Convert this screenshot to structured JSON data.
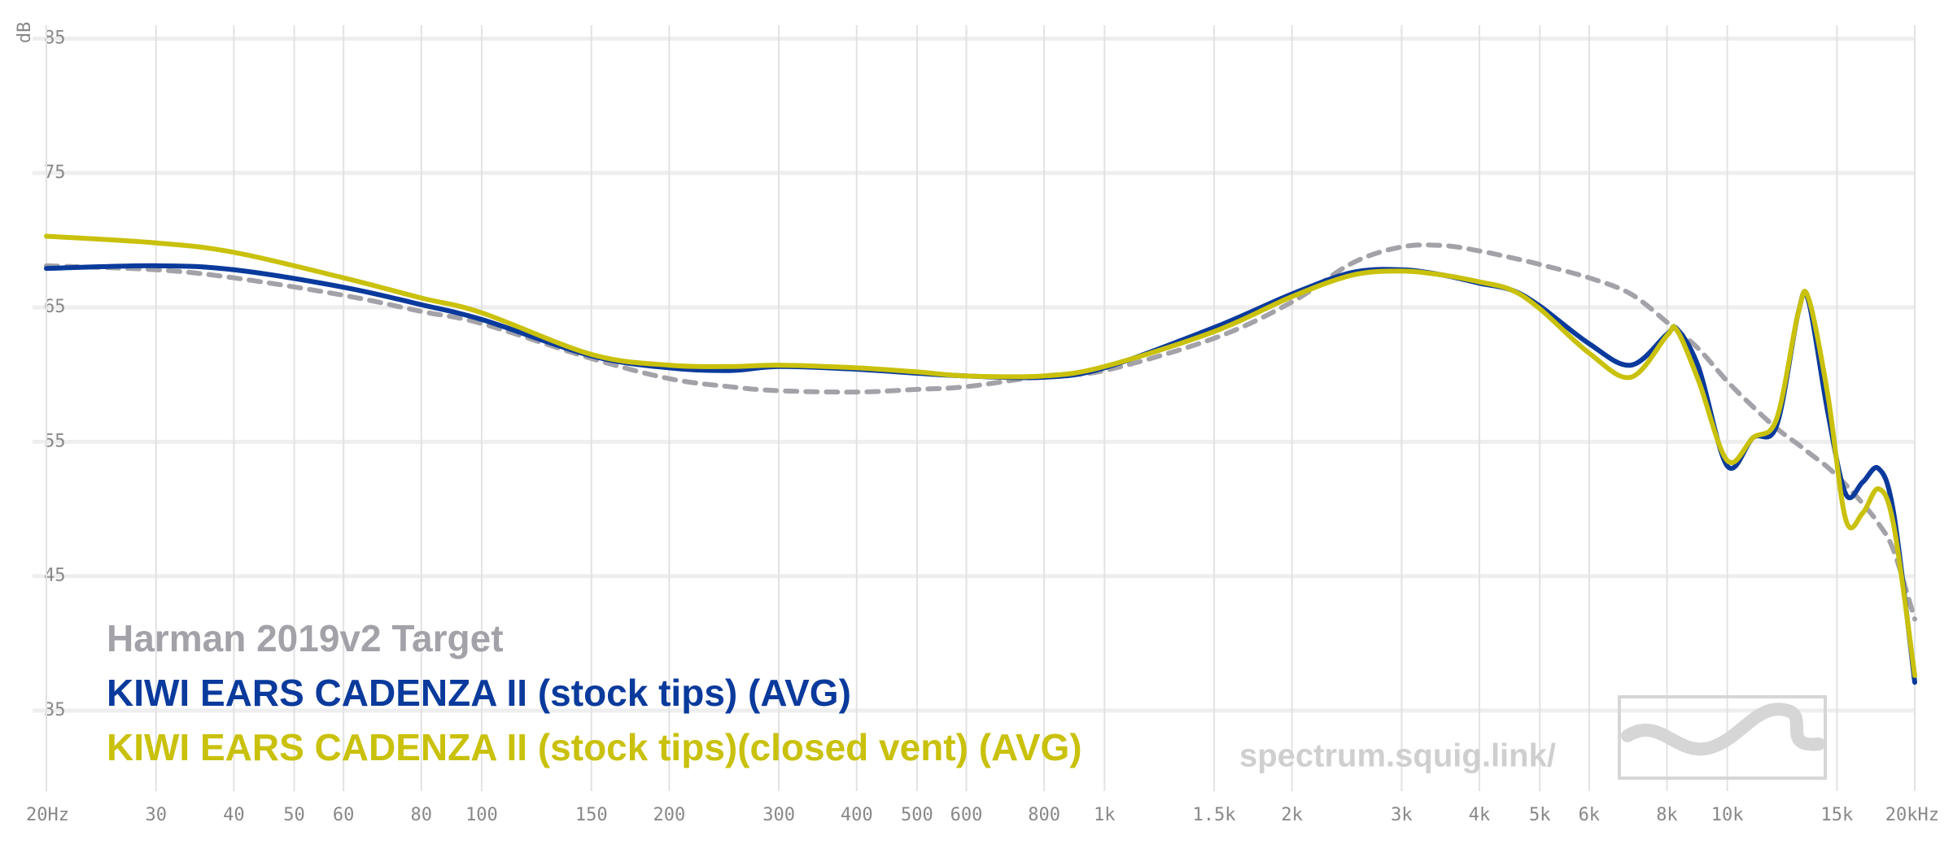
{
  "chart_data": {
    "type": "line",
    "y_label": "dB",
    "x_log": true,
    "grid": true,
    "legend_position": "bottom-left",
    "watermark": "spectrum.squig.link/",
    "xlim": [
      20,
      20000
    ],
    "ylim": [
      29,
      86
    ],
    "xticks": [
      {
        "value": 20,
        "label": "20Hz"
      },
      30,
      40,
      50,
      60,
      80,
      100,
      150,
      200,
      300,
      400,
      500,
      600,
      800,
      {
        "value": 1000,
        "label": "1k"
      },
      {
        "value": 1500,
        "label": "1.5k"
      },
      {
        "value": 2000,
        "label": "2k"
      },
      {
        "value": 3000,
        "label": "3k"
      },
      {
        "value": 4000,
        "label": "4k"
      },
      {
        "value": 5000,
        "label": "5k"
      },
      {
        "value": 6000,
        "label": "6k"
      },
      {
        "value": 8000,
        "label": "8k"
      },
      {
        "value": 10000,
        "label": "10k"
      },
      {
        "value": 15000,
        "label": "15k"
      },
      {
        "value": 20000,
        "label": "20kHz"
      }
    ],
    "yticks": [
      85,
      75,
      65,
      55,
      45,
      35
    ],
    "x": [
      20,
      30,
      40,
      60,
      80,
      100,
      150,
      200,
      250,
      300,
      400,
      500,
      600,
      800,
      1000,
      1500,
      2000,
      2500,
      3000,
      3500,
      4000,
      4500,
      5000,
      6000,
      7000,
      8000,
      8300,
      9000,
      10000,
      11000,
      12000,
      13000,
      13500,
      14500,
      15500,
      16500,
      17500,
      18500,
      20000
    ],
    "series": [
      {
        "name": "Harman 2019v2 Target",
        "color": "#a3a2a8",
        "dashed": true,
        "values": [
          68.1,
          67.8,
          67.2,
          65.9,
          64.7,
          63.8,
          61.2,
          59.7,
          59.1,
          58.8,
          58.7,
          58.9,
          59.1,
          59.9,
          60.3,
          62.7,
          65.4,
          68.3,
          69.5,
          69.6,
          69.2,
          68.7,
          68.2,
          67.2,
          66.0,
          63.9,
          63.3,
          61.9,
          59.5,
          57.6,
          56.0,
          54.8,
          54.2,
          53.1,
          51.8,
          50.4,
          48.9,
          46.9,
          41.8
        ]
      },
      {
        "name": "KIWI EARS CADENZA II (stock tips) (AVG)",
        "color": "#0a3a9c",
        "dashed": false,
        "values": [
          67.9,
          68.1,
          67.8,
          66.5,
          65.2,
          64.1,
          61.4,
          60.5,
          60.3,
          60.6,
          60.4,
          60.1,
          59.9,
          59.8,
          60.5,
          63.5,
          66.0,
          67.6,
          67.8,
          67.4,
          66.8,
          66.3,
          65.1,
          62.3,
          60.7,
          63.0,
          63.4,
          60.5,
          53.2,
          55.3,
          56.2,
          64.6,
          65.5,
          57.2,
          51.1,
          52.0,
          53.0,
          49.7,
          37.1
        ]
      },
      {
        "name": "KIWI EARS CADENZA II (stock tips)(closed vent) (AVG)",
        "color": "#c9c10c",
        "dashed": false,
        "values": [
          70.3,
          69.8,
          69.1,
          67.2,
          65.7,
          64.6,
          61.5,
          60.7,
          60.6,
          60.7,
          60.5,
          60.2,
          59.9,
          59.9,
          60.6,
          63.2,
          65.8,
          67.4,
          67.7,
          67.4,
          66.9,
          66.3,
          64.9,
          61.6,
          59.8,
          62.9,
          63.3,
          59.5,
          53.6,
          55.3,
          56.7,
          64.6,
          65.7,
          58.5,
          49.2,
          49.7,
          51.5,
          48.8,
          37.6
        ]
      }
    ]
  }
}
